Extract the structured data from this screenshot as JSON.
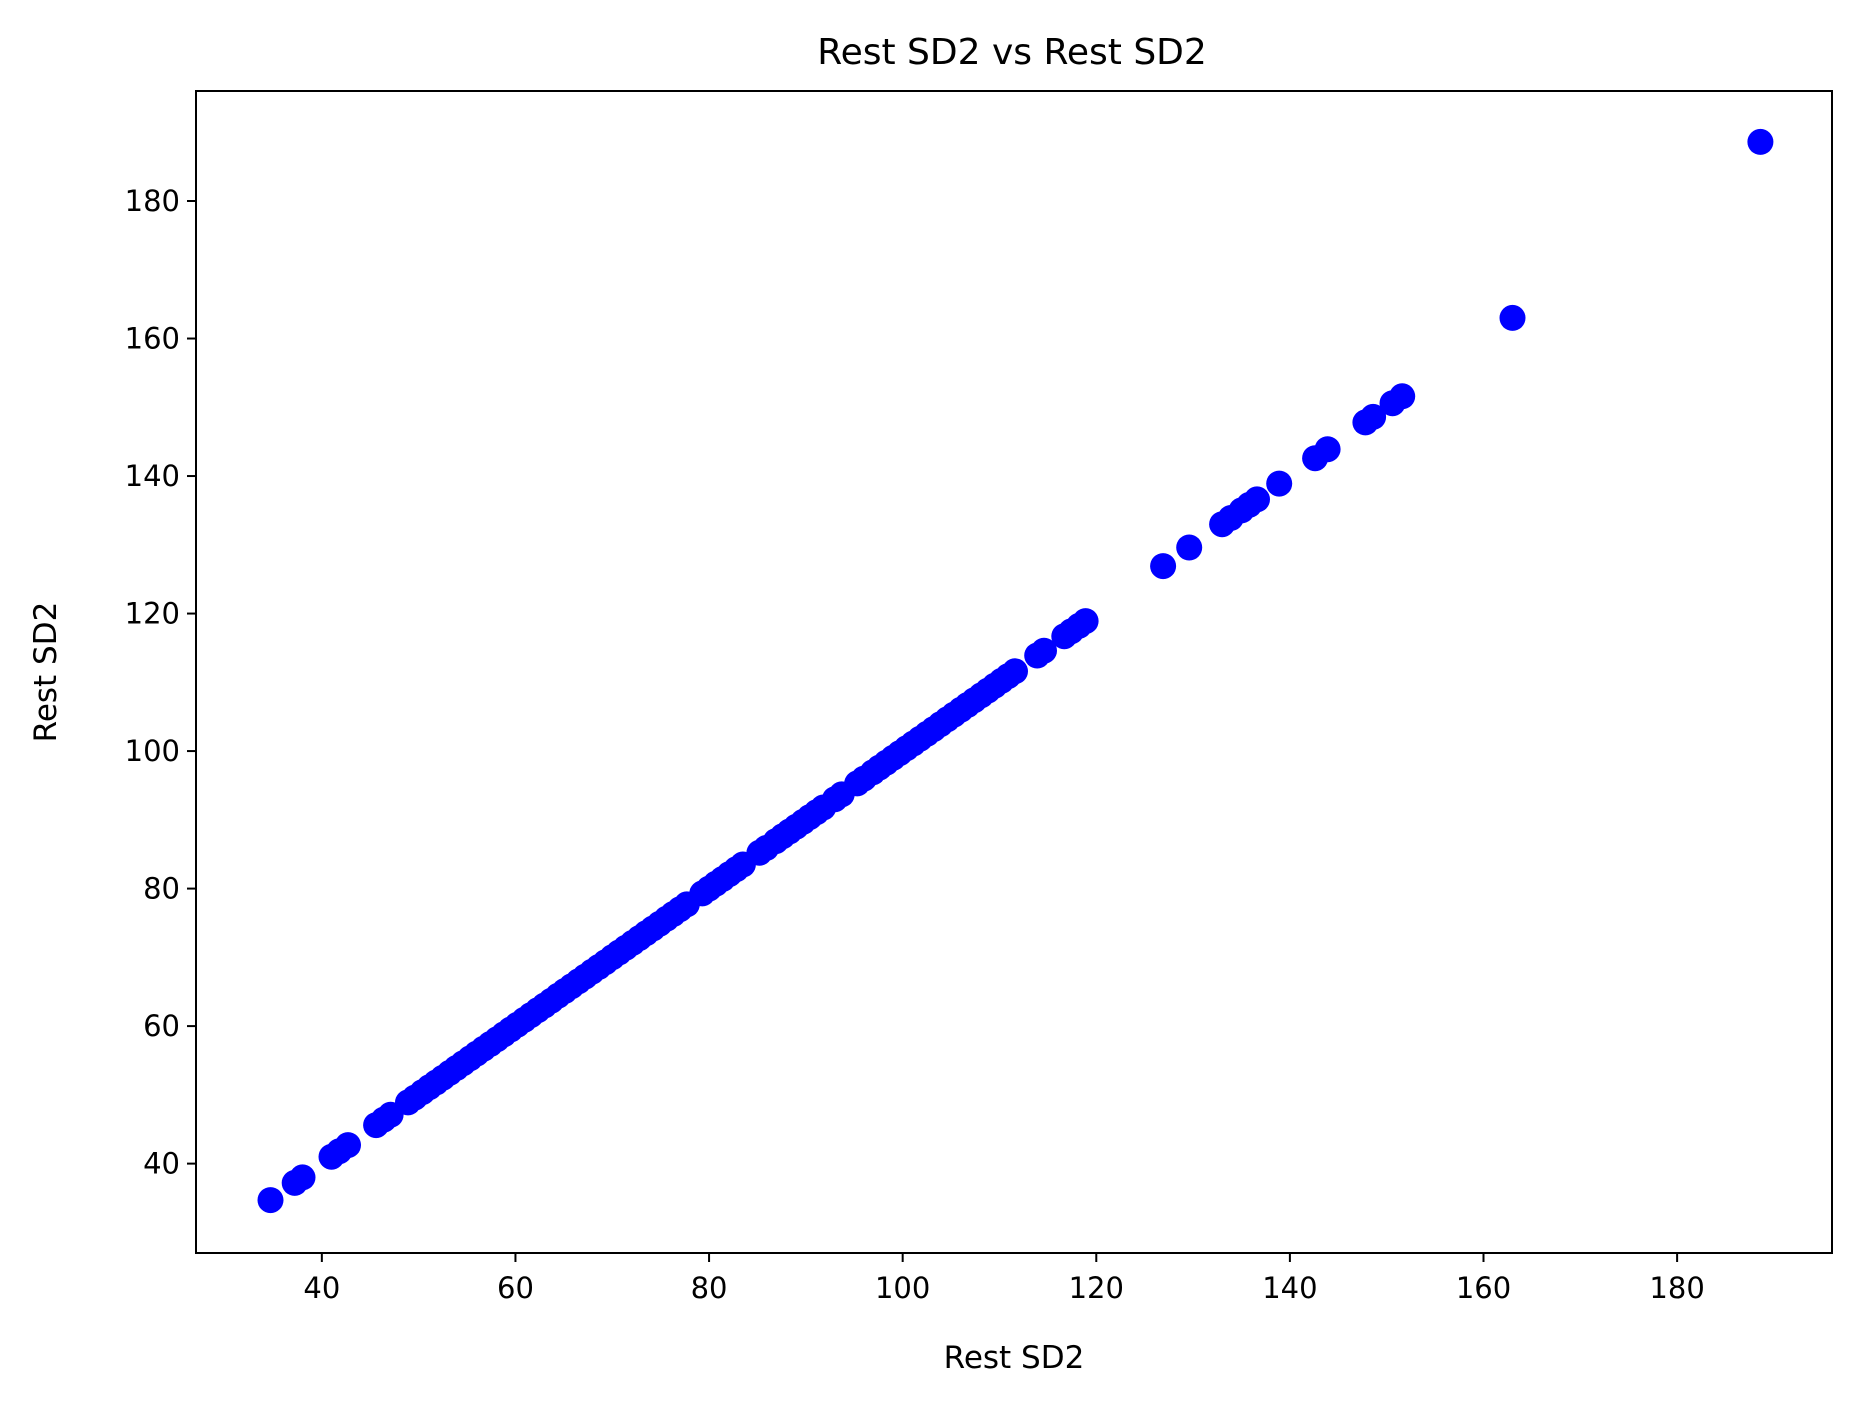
{
  "chart_data": {
    "type": "scatter",
    "title": "Rest SD2 vs Rest SD2",
    "xlabel": "Rest SD2",
    "ylabel": "Rest SD2",
    "xlim": [
      27,
      196
    ],
    "ylim": [
      27,
      196
    ],
    "xticks": [
      40,
      60,
      80,
      100,
      120,
      140,
      160,
      180
    ],
    "yticks": [
      40,
      60,
      80,
      100,
      120,
      140,
      160,
      180
    ],
    "grid": false,
    "marker_color": "#0000ff",
    "series": [
      {
        "x": [
          34.7,
          37.2,
          38.0,
          41.0,
          41.8,
          42.7,
          45.6,
          46.4,
          47.1,
          48.9,
          49.6,
          50.4,
          51.1,
          51.8,
          52.5,
          53.2,
          53.9,
          54.6,
          55.3,
          56.0,
          56.7,
          57.4,
          58.1,
          58.8,
          59.5,
          60.2,
          60.9,
          61.6,
          62.3,
          63.0,
          63.7,
          64.4,
          65.1,
          65.8,
          66.5,
          67.2,
          67.9,
          68.6,
          69.3,
          70.0,
          70.7,
          71.4,
          72.1,
          72.8,
          73.5,
          74.2,
          74.9,
          75.6,
          76.3,
          77.0,
          77.7,
          79.3,
          80.0,
          80.7,
          81.4,
          82.1,
          82.8,
          83.5,
          85.2,
          85.9,
          86.9,
          87.6,
          88.3,
          89.0,
          89.7,
          90.4,
          91.1,
          91.8,
          93.0,
          93.7,
          95.3,
          96.0,
          96.9,
          97.6,
          98.3,
          99.0,
          99.7,
          100.4,
          101.1,
          101.8,
          102.5,
          103.2,
          103.9,
          104.6,
          105.3,
          106.0,
          106.7,
          107.4,
          108.1,
          108.8,
          109.5,
          110.2,
          110.9,
          111.6,
          113.9,
          114.6,
          116.7,
          117.4,
          118.2,
          118.9,
          126.9,
          129.6,
          133.0,
          133.9,
          135.0,
          135.8,
          136.6,
          138.9,
          142.6,
          143.9,
          147.8,
          148.6,
          150.6,
          151.6,
          163.0,
          188.6
        ],
        "y": [
          34.7,
          37.2,
          38.0,
          41.0,
          41.8,
          42.7,
          45.6,
          46.4,
          47.1,
          48.9,
          49.6,
          50.4,
          51.1,
          51.8,
          52.5,
          53.2,
          53.9,
          54.6,
          55.3,
          56.0,
          56.7,
          57.4,
          58.1,
          58.8,
          59.5,
          60.2,
          60.9,
          61.6,
          62.3,
          63.0,
          63.7,
          64.4,
          65.1,
          65.8,
          66.5,
          67.2,
          67.9,
          68.6,
          69.3,
          70.0,
          70.7,
          71.4,
          72.1,
          72.8,
          73.5,
          74.2,
          74.9,
          75.6,
          76.3,
          77.0,
          77.7,
          79.3,
          80.0,
          80.7,
          81.4,
          82.1,
          82.8,
          83.5,
          85.2,
          85.9,
          86.9,
          87.6,
          88.3,
          89.0,
          89.7,
          90.4,
          91.1,
          91.8,
          93.0,
          93.7,
          95.3,
          96.0,
          96.9,
          97.6,
          98.3,
          99.0,
          99.7,
          100.4,
          101.1,
          101.8,
          102.5,
          103.2,
          103.9,
          104.6,
          105.3,
          106.0,
          106.7,
          107.4,
          108.1,
          108.8,
          109.5,
          110.2,
          110.9,
          111.6,
          113.9,
          114.6,
          116.7,
          117.4,
          118.2,
          118.9,
          126.9,
          129.6,
          133.0,
          133.9,
          135.0,
          135.8,
          136.6,
          138.9,
          142.6,
          143.9,
          147.8,
          148.6,
          150.6,
          151.6,
          163.0,
          188.6
        ]
      }
    ]
  }
}
